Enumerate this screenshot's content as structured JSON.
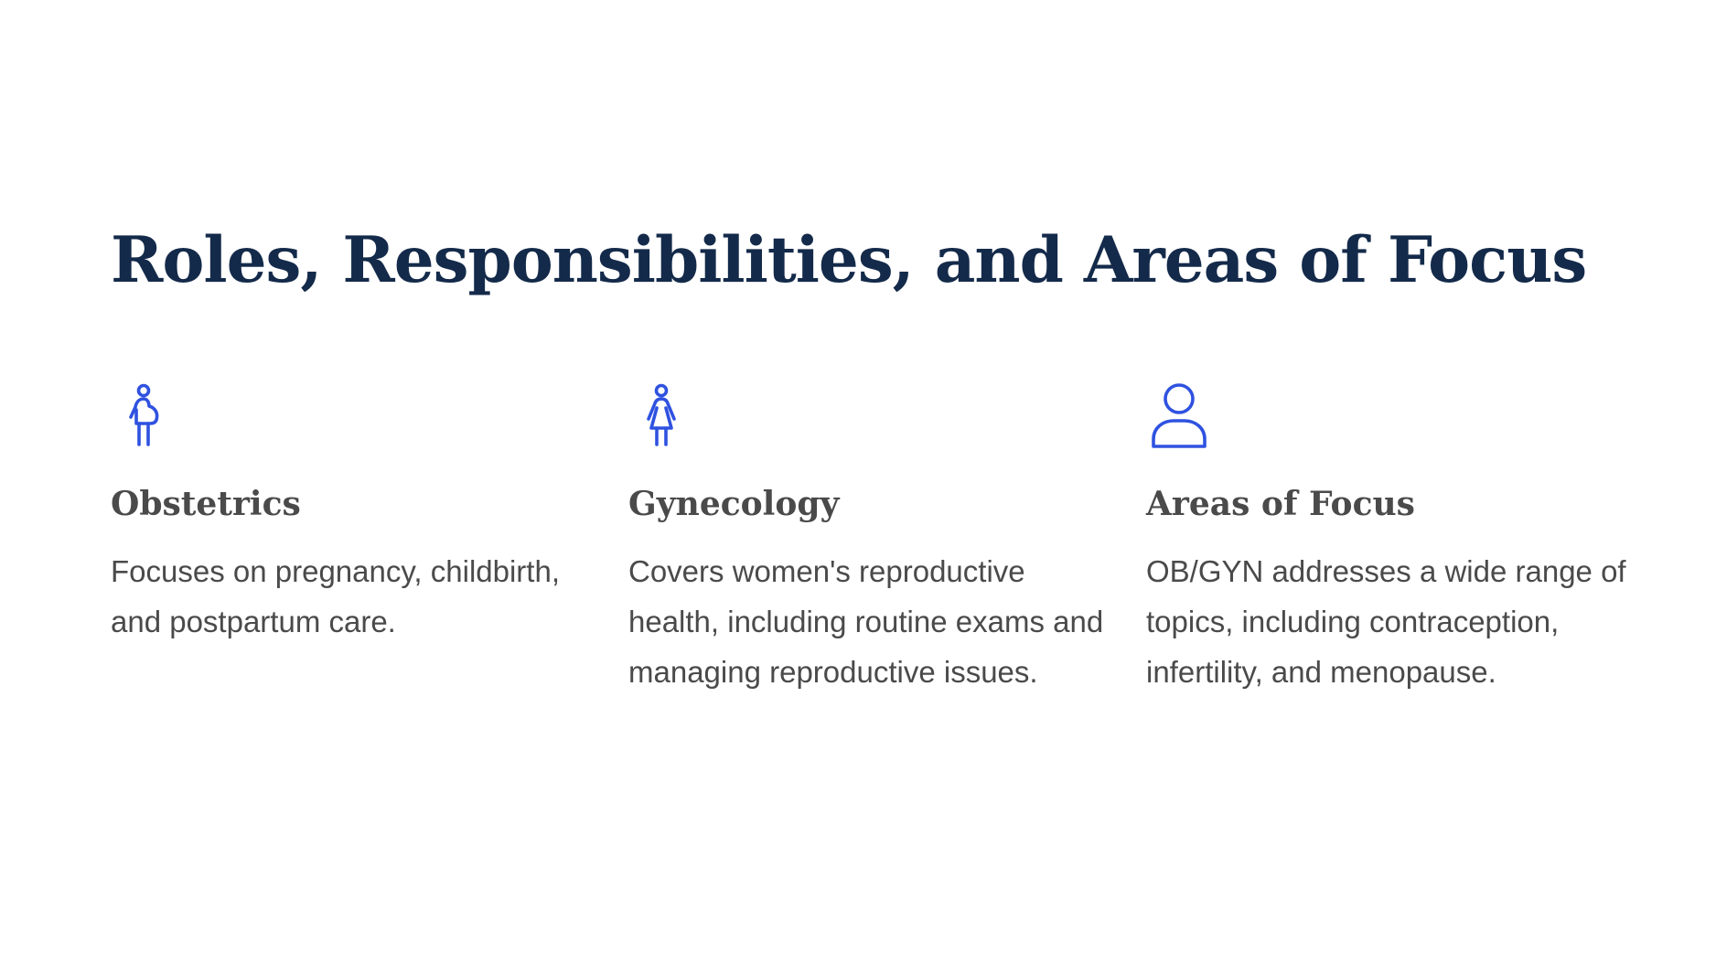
{
  "page": {
    "title": "Roles, Responsibilities, and Areas of Focus"
  },
  "colors": {
    "title": "#142a4a",
    "text": "#4a4a4a",
    "icon": "#2f52e0",
    "background": "#ffffff"
  },
  "cards": [
    {
      "icon": "pregnant-woman-icon",
      "title": "Obstetrics",
      "text": "Focuses on pregnancy, childbirth, and postpartum care."
    },
    {
      "icon": "woman-icon",
      "title": "Gynecology",
      "text": "Covers women's reproductive health, including routine exams and managing reproductive issues."
    },
    {
      "icon": "person-icon",
      "title": "Areas of Focus",
      "text": "OB/GYN addresses a wide range of topics, including contraception, infertility, and menopause."
    }
  ]
}
